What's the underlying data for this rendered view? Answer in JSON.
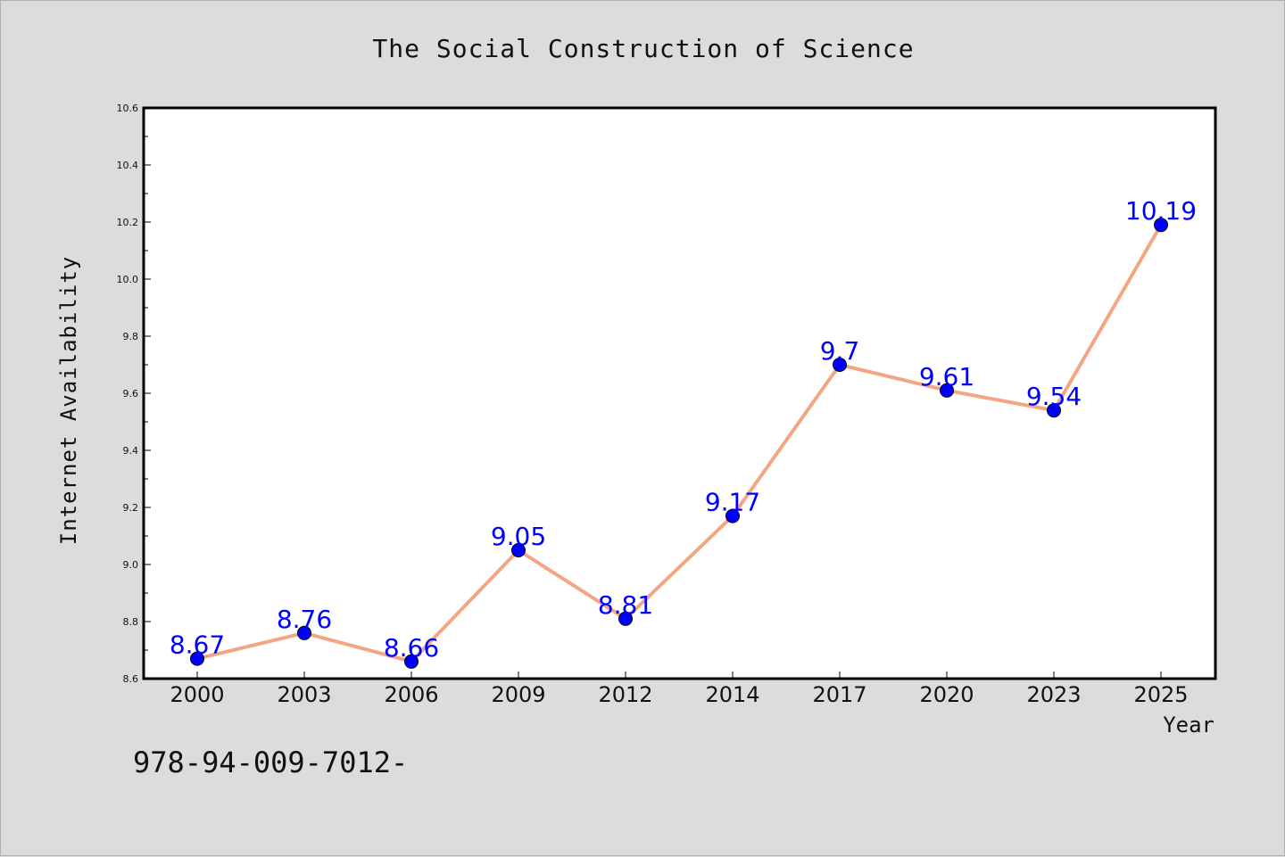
{
  "chart_data": {
    "type": "line",
    "title": "The Social Construction of Science",
    "xlabel": "Year",
    "ylabel": "Internet Availability",
    "categories": [
      "2000",
      "2003",
      "2006",
      "2009",
      "2012",
      "2014",
      "2017",
      "2020",
      "2023",
      "2025"
    ],
    "series": [
      {
        "values": [
          8.67,
          8.76,
          8.66,
          9.05,
          8.81,
          9.17,
          9.7,
          9.61,
          9.54,
          10.19
        ],
        "line_color": "#f4a582",
        "marker_color": "#0000ff"
      }
    ],
    "data_labels": [
      "8.67",
      "8.76",
      "8.66",
      "9.05",
      "8.81",
      "9.17",
      "9.7",
      "9.61",
      "9.54",
      "10.19"
    ],
    "ylim": [
      8.6,
      10.6
    ],
    "yticks": [
      "8.6",
      "8.8",
      "9.0",
      "9.2",
      "9.4",
      "9.6",
      "9.8",
      "10.0",
      "10.2",
      "10.4",
      "10.6"
    ],
    "grid": false,
    "legend": "none",
    "label_color": "#0000ff",
    "background": "#dcdcdc",
    "plot_background": "#ffffff"
  },
  "footer_text": "978-94-009-7012-"
}
